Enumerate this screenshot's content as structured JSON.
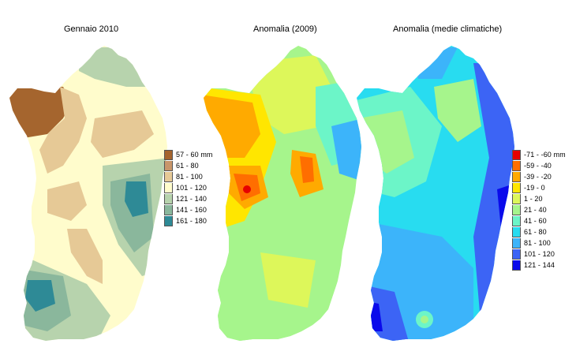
{
  "maps": [
    {
      "title": "Gennaio 2010",
      "legend": [
        {
          "label": "57 - 60 mm",
          "color": "#a5652e"
        },
        {
          "label": "61 - 80",
          "color": "#c8966a"
        },
        {
          "label": "81 - 100",
          "color": "#e6c996"
        },
        {
          "label": "101 - 120",
          "color": "#fffccc"
        },
        {
          "label": "121 - 140",
          "color": "#b7d3ad"
        },
        {
          "label": "141 - 160",
          "color": "#8ab79c"
        },
        {
          "label": "161 - 180",
          "color": "#2e8a96"
        }
      ]
    },
    {
      "title": "Anomalia (2009)",
      "legend": []
    },
    {
      "title": "Anomalia (medie climatiche)",
      "legend": [
        {
          "label": "-71 - -60 mm",
          "color": "#e60000"
        },
        {
          "label": "-59 - -40",
          "color": "#ff6e00"
        },
        {
          "label": "-39 - -20",
          "color": "#ffaa00"
        },
        {
          "label": "-19 - 0",
          "color": "#ffe600"
        },
        {
          "label": "1 - 20",
          "color": "#ddf75a"
        },
        {
          "label": "21 - 40",
          "color": "#a6f58c"
        },
        {
          "label": "41 - 60",
          "color": "#6cf5c8"
        },
        {
          "label": "61 - 80",
          "color": "#28dcf0"
        },
        {
          "label": "81 - 100",
          "color": "#3cb4fa"
        },
        {
          "label": "101 - 120",
          "color": "#3c64f5"
        },
        {
          "label": "121 - 144",
          "color": "#0a0aeb"
        }
      ]
    }
  ],
  "colors": {
    "map1_base": "#fffccc",
    "map2_base": "#a6f58c",
    "map3_base": "#28dcf0"
  }
}
